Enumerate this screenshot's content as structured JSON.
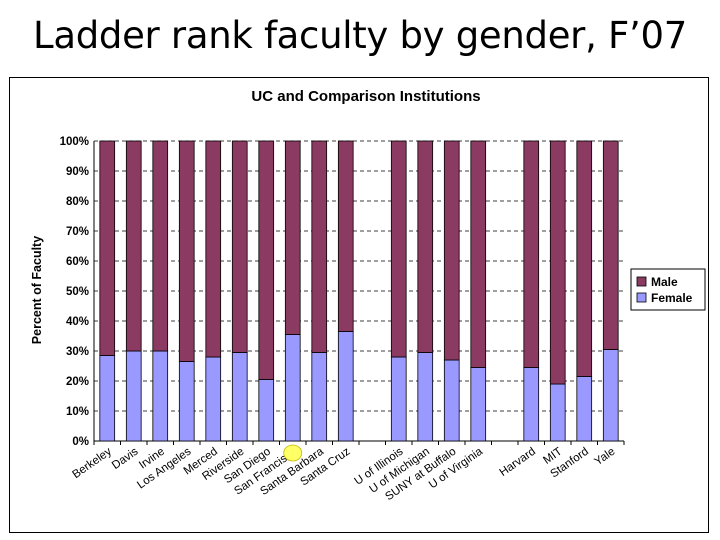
{
  "slide": {
    "title": "Ladder rank faculty by gender, F’07"
  },
  "colors": {
    "male": "#8B3A62",
    "female": "#9999FF",
    "highlight": "#FFFF66"
  },
  "chart_data": {
    "type": "bar",
    "stacked": true,
    "title": "UC and Comparison Institutions",
    "ylabel": "Percent of Faculty",
    "ylim": [
      0,
      100
    ],
    "yticks": [
      "0%",
      "10%",
      "20%",
      "30%",
      "40%",
      "50%",
      "60%",
      "70%",
      "80%",
      "90%",
      "100%"
    ],
    "grid": true,
    "legend_position": "right",
    "categories": [
      "Berkeley",
      "Davis",
      "Irvine",
      "Los Angeles",
      "Merced",
      "Riverside",
      "San Diego",
      "San Francisco",
      "Santa Barbara",
      "Santa Cruz",
      "",
      "U of Illinois",
      "U of Michigan",
      "SUNY at Buffalo",
      "U of Virginia",
      "",
      "Harvard",
      "MIT",
      "Stanford",
      "Yale"
    ],
    "series": [
      {
        "name": "Male",
        "values": [
          71.5,
          70,
          70,
          73.5,
          72,
          70.5,
          79.5,
          64.5,
          70.5,
          63.5,
          null,
          72,
          70.5,
          73,
          75.5,
          null,
          75.5,
          81,
          78.5,
          69.5
        ]
      },
      {
        "name": "Female",
        "values": [
          28.5,
          30,
          30,
          26.5,
          28,
          29.5,
          20.5,
          35.5,
          29.5,
          36.5,
          null,
          28,
          29.5,
          27,
          24.5,
          null,
          24.5,
          19,
          21.5,
          30.5
        ]
      }
    ]
  }
}
